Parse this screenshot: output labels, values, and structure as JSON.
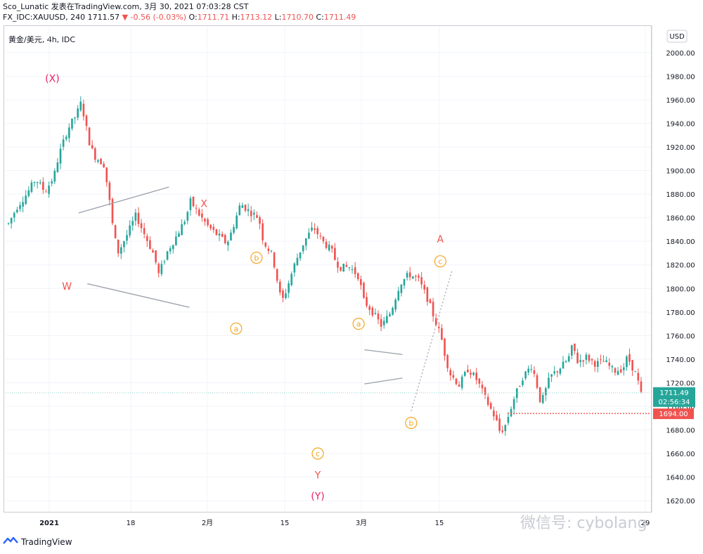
{
  "header": {
    "line1": "Sco_Lunatic 发表在TradingView.com, 3月 30, 2021 07:03:28 CST",
    "symbol": "FX_IDC:XAUUSD, 240",
    "last": "1711.57",
    "change": "▼ -0.56 (-0.03%)",
    "o_label": "O:",
    "o_val": "1711.71",
    "h_label": "H:",
    "h_val": "1713.12",
    "l_label": "L:",
    "l_val": "1710.70",
    "c_label": "C:",
    "c_val": "1711.49"
  },
  "symbol_tag": "黄金/美元, 4h, IDC",
  "currency_button": "USD",
  "brand": "TradingView",
  "watermark": "微信号: cybolang",
  "colors": {
    "up": "#26a69a",
    "down": "#ef5350",
    "wave_red": "#ef5350",
    "wave_orange": "#f5a623",
    "wave_pink": "#e91e63"
  },
  "chart_data": {
    "type": "candlestick",
    "title": "黄金/美元, 4h, IDC",
    "y_axis": {
      "min": 1610,
      "max": 2010,
      "ticks": [
        1620,
        1640,
        1660,
        1680,
        1700,
        1720,
        1740,
        1760,
        1780,
        1800,
        1820,
        1840,
        1860,
        1880,
        1900,
        1920,
        1940,
        1960,
        1980,
        2000
      ]
    },
    "x_axis": {
      "ticks": [
        "2021",
        "18",
        "2月",
        "15",
        "3月",
        "15",
        "29"
      ]
    },
    "price_labels": {
      "current": "1711.49",
      "countdown": "02:56:34",
      "target": "1694.00"
    },
    "price_path": [
      [
        0,
        1855
      ],
      [
        2,
        1870
      ],
      [
        4,
        1880
      ],
      [
        6,
        1893
      ],
      [
        8,
        1882
      ],
      [
        10,
        1895
      ],
      [
        11,
        1912
      ],
      [
        13,
        1935
      ],
      [
        15,
        1948
      ],
      [
        16,
        1958
      ],
      [
        17,
        1938
      ],
      [
        18,
        1920
      ],
      [
        19,
        1912
      ],
      [
        21,
        1905
      ],
      [
        22,
        1880
      ],
      [
        23,
        1850
      ],
      [
        24,
        1830
      ],
      [
        26,
        1845
      ],
      [
        28,
        1862
      ],
      [
        30,
        1845
      ],
      [
        32,
        1828
      ],
      [
        33,
        1812
      ],
      [
        35,
        1832
      ],
      [
        37,
        1845
      ],
      [
        39,
        1860
      ],
      [
        40,
        1874
      ],
      [
        42,
        1862
      ],
      [
        44,
        1852
      ],
      [
        46,
        1845
      ],
      [
        48,
        1838
      ],
      [
        49,
        1848
      ],
      [
        51,
        1872
      ],
      [
        53,
        1865
      ],
      [
        55,
        1860
      ],
      [
        56,
        1840
      ],
      [
        58,
        1828
      ],
      [
        59,
        1808
      ],
      [
        60,
        1788
      ],
      [
        61,
        1798
      ],
      [
        63,
        1822
      ],
      [
        65,
        1840
      ],
      [
        67,
        1852
      ],
      [
        69,
        1840
      ],
      [
        71,
        1832
      ],
      [
        72,
        1822
      ],
      [
        73,
        1818
      ],
      [
        75,
        1818
      ],
      [
        77,
        1810
      ],
      [
        78,
        1790
      ],
      [
        80,
        1780
      ],
      [
        82,
        1768
      ],
      [
        84,
        1780
      ],
      [
        86,
        1804
      ],
      [
        88,
        1812
      ],
      [
        90,
        1808
      ],
      [
        92,
        1792
      ],
      [
        94,
        1770
      ],
      [
        95,
        1760
      ],
      [
        96,
        1742
      ],
      [
        97,
        1728
      ],
      [
        99,
        1718
      ],
      [
        101,
        1732
      ],
      [
        103,
        1722
      ],
      [
        105,
        1705
      ],
      [
        107,
        1690
      ],
      [
        108,
        1678
      ],
      [
        109,
        1682
      ],
      [
        111,
        1706
      ],
      [
        113,
        1725
      ],
      [
        115,
        1735
      ],
      [
        116,
        1720
      ],
      [
        117,
        1702
      ],
      [
        119,
        1725
      ],
      [
        121,
        1732
      ],
      [
        123,
        1740
      ],
      [
        124,
        1752
      ],
      [
        125,
        1738
      ],
      [
        127,
        1742
      ],
      [
        129,
        1736
      ],
      [
        131,
        1738
      ],
      [
        133,
        1730
      ],
      [
        135,
        1732
      ],
      [
        136,
        1742
      ],
      [
        138,
        1726
      ],
      [
        139,
        1710
      ]
    ],
    "annotations": [
      {
        "text": "(X)",
        "kind": "pink",
        "x": 16,
        "y": 1978
      },
      {
        "text": "W",
        "kind": "red",
        "x": 21,
        "y": 1802
      },
      {
        "text": "X",
        "kind": "red",
        "x": 68,
        "y": 1872
      },
      {
        "text": "b",
        "kind": "circle",
        "x": 86,
        "y": 1826
      },
      {
        "text": "a",
        "kind": "circle",
        "x": 79,
        "y": 1766
      },
      {
        "text": "c",
        "kind": "circle",
        "x": 107,
        "y": 1660
      },
      {
        "text": "Y",
        "kind": "red",
        "x": 107,
        "y": 1642
      },
      {
        "text": "(Y)",
        "kind": "pink",
        "x": 107,
        "y": 1624
      },
      {
        "text": "a",
        "kind": "circle",
        "x": 121,
        "y": 1770
      },
      {
        "text": "b",
        "kind": "circle",
        "x": 139,
        "y": 1686
      },
      {
        "text": "A",
        "kind": "red",
        "x": 149,
        "y": 1842
      },
      {
        "text": "c",
        "kind": "circle",
        "x": 149,
        "y": 1823
      }
    ],
    "trendlines": [
      {
        "from": [
          25,
          1864
        ],
        "to": [
          56,
          1886
        ]
      },
      {
        "from": [
          28,
          1804
        ],
        "to": [
          63,
          1784
        ]
      },
      {
        "from": [
          123,
          1748
        ],
        "to": [
          136,
          1744
        ]
      },
      {
        "from": [
          123,
          1719
        ],
        "to": [
          136,
          1724
        ]
      }
    ],
    "projection": {
      "from": [
        139,
        1696
      ],
      "to": [
        153,
        1815
      ]
    },
    "target_level": 1694
  }
}
